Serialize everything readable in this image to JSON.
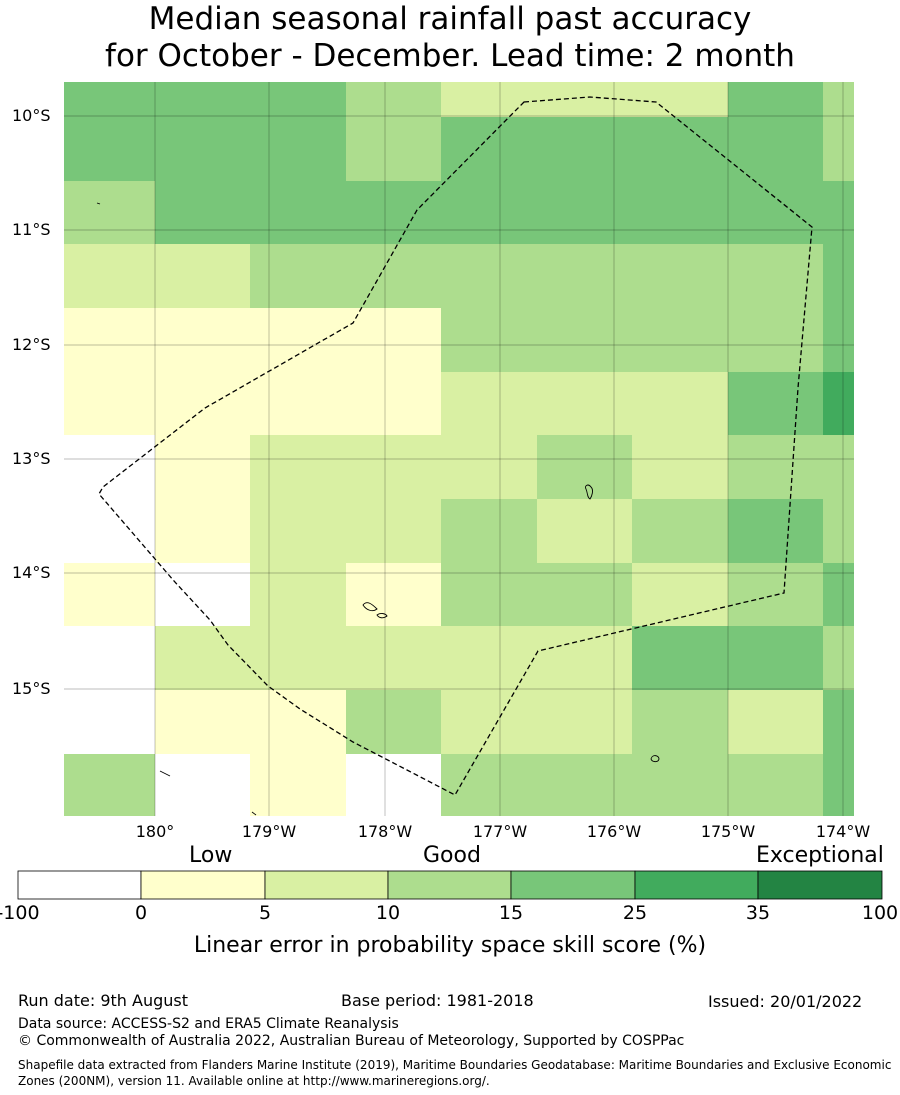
{
  "title": {
    "line1": "Median seasonal rainfall past accuracy",
    "line2": "for October - December. Lead time: 2 month"
  },
  "map": {
    "lat_labels": [
      "10°S",
      "11°S",
      "12°S",
      "13°S",
      "14°S",
      "15°S"
    ],
    "lon_labels": [
      "180°",
      "179°W",
      "178°W",
      "177°W",
      "176°W",
      "175°W",
      "174°W"
    ],
    "grid_cells": [
      {
        "row": 0,
        "cells": [
          "g3",
          "g3",
          "g3",
          "g2",
          "g1",
          "g1",
          "g1",
          "g3",
          "g2"
        ]
      },
      {
        "row": 1,
        "cells": [
          "g3",
          "g3",
          "g3",
          "g2",
          "g3",
          "g3",
          "g3",
          "g3",
          "g2"
        ]
      },
      {
        "row": 2,
        "cells": [
          "g2",
          "g3",
          "g3",
          "g3",
          "g3",
          "g3",
          "g3",
          "g3",
          "g3"
        ]
      },
      {
        "row": 3,
        "cells": [
          "g1",
          "g1",
          "g2",
          "g2",
          "g2",
          "g2",
          "g2",
          "g2",
          "g3"
        ]
      },
      {
        "row": 4,
        "cells": [
          "y",
          "y",
          "y",
          "y",
          "g2",
          "g2",
          "g2",
          "g2",
          "g3"
        ]
      },
      {
        "row": 5,
        "cells": [
          "y",
          "y",
          "y",
          "y",
          "g1",
          "g1",
          "g1",
          "g3",
          "g4"
        ]
      },
      {
        "row": 6,
        "cells": [
          "w",
          "y",
          "g1",
          "g1",
          "g1",
          "g2",
          "g1",
          "g2",
          "g2"
        ]
      },
      {
        "row": 7,
        "cells": [
          "w",
          "y",
          "g1",
          "g1",
          "g2",
          "g1",
          "g2",
          "g3",
          "g2"
        ]
      },
      {
        "row": 8,
        "cells": [
          "y",
          "w",
          "g1",
          "y",
          "g2",
          "g2",
          "g1",
          "g2",
          "g3"
        ]
      },
      {
        "row": 9,
        "cells": [
          "w",
          "g1",
          "g1",
          "g1",
          "g1",
          "g1",
          "g3",
          "g3",
          "g2"
        ]
      },
      {
        "row": 10,
        "cells": [
          "w",
          "y",
          "y",
          "g2",
          "g1",
          "g1",
          "g2",
          "g1",
          "g3"
        ]
      },
      {
        "row": 11,
        "cells": [
          "g2",
          "w",
          "y",
          "w",
          "g2",
          "g2",
          "g2",
          "g2",
          "g3"
        ]
      }
    ]
  },
  "legend": {
    "categories": [
      "Low",
      "Good",
      "Exceptional"
    ],
    "bins": [
      {
        "color": "#ffffff"
      },
      {
        "color": "#ffffcc"
      },
      {
        "color": "#d9f0a3"
      },
      {
        "color": "#addd8e"
      },
      {
        "color": "#78c679"
      },
      {
        "color": "#41ab5d"
      },
      {
        "color": "#238443"
      }
    ],
    "ticks": [
      "-100",
      "0",
      "5",
      "10",
      "15",
      "25",
      "35",
      "100"
    ],
    "label": "Linear error in probability space skill score (%)"
  },
  "colors": {
    "w": "#ffffff",
    "y": "#ffffcc",
    "g1": "#d9f0a3",
    "g2": "#addd8e",
    "g3": "#78c679",
    "g4": "#41ab5d",
    "g5": "#238443"
  },
  "footer": {
    "run_date": "Run date: 9th August",
    "base_period": "Base period: 1981-2018",
    "issued": "Issued: 20/01/2022",
    "data_source": "Data source: ACCESS-S2 and ERA5 Climate Reanalysis",
    "copyright": "© Commonwealth of Australia 2022, Australian Bureau of Meteorology, Supported by COSPPac",
    "shapefile": "Shapefile data extracted from Flanders Marine Institute (2019), Maritime Boundaries Geodatabase: Maritime Boundaries and Exclusive Economic Zones (200NM), version 11. Available online at http://www.marineregions.org/."
  }
}
